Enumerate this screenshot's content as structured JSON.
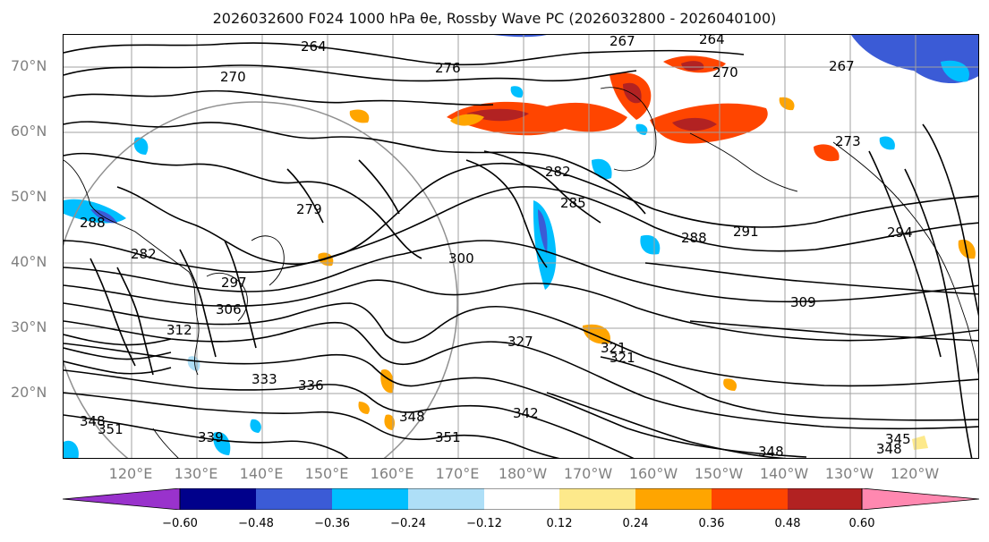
{
  "title": "2026032600 F024 1000 hPa θe, Rossby Wave PC (2026032800 - 2026040100)",
  "map": {
    "projection": "Plate Carrée, 110°E–110°W, 10°N–75°N",
    "lat_labels": [
      "70°N",
      "60°N",
      "50°N",
      "40°N",
      "30°N",
      "20°N"
    ],
    "lon_labels": [
      "120°E",
      "130°E",
      "140°E",
      "150°E",
      "160°E",
      "170°E",
      "180°W",
      "170°W",
      "160°W",
      "150°W",
      "140°W",
      "130°W",
      "120°W"
    ],
    "contour_labels": [
      "264",
      "267",
      "264",
      "270",
      "276",
      "270",
      "267",
      "273",
      "279",
      "282",
      "285",
      "288",
      "291",
      "294",
      "300",
      "297",
      "306",
      "309",
      "312",
      "321",
      "321",
      "327",
      "333",
      "336",
      "339",
      "342",
      "345",
      "348",
      "348",
      "348",
      "348",
      "351",
      "351",
      "288",
      "282"
    ],
    "contour_color": "#000000",
    "coastline_color": "#000000",
    "gridline_color": "#a0a0a0"
  },
  "colorbar": {
    "tick_labels": [
      "−0.60",
      "−0.48",
      "−0.36",
      "−0.24",
      "−0.12",
      "0.12",
      "0.24",
      "0.36",
      "0.48",
      "0.60"
    ],
    "colors": [
      "#9932cc",
      "#00008b",
      "#3b5bd6",
      "#00bfff",
      "#aedff7",
      "#ffffff",
      "#fde98b",
      "#ffa500",
      "#ff4500",
      "#b22222",
      "#ff88b0"
    ],
    "extend": "both"
  }
}
